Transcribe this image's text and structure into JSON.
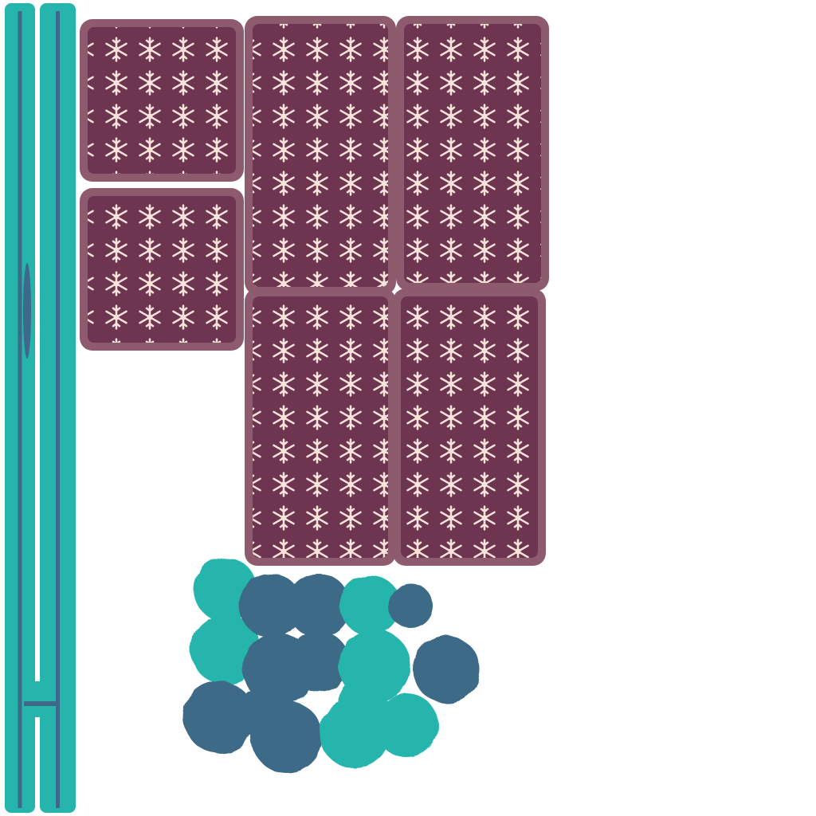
{
  "canvas": {
    "background": "#ffffff"
  },
  "colors": {
    "teal": "#26b5ad",
    "teal_dark": "#1f9c95",
    "slate_blue": "#3e6a86",
    "stripe": "#3d6a88",
    "maroon": "#6e3550",
    "maroon_edge": "#8e5a6e",
    "snow": "#f7e3da"
  },
  "atlas": {
    "description_hidden": "",
    "strip_count": 2,
    "panel_count": 6,
    "blob_count": 16
  }
}
